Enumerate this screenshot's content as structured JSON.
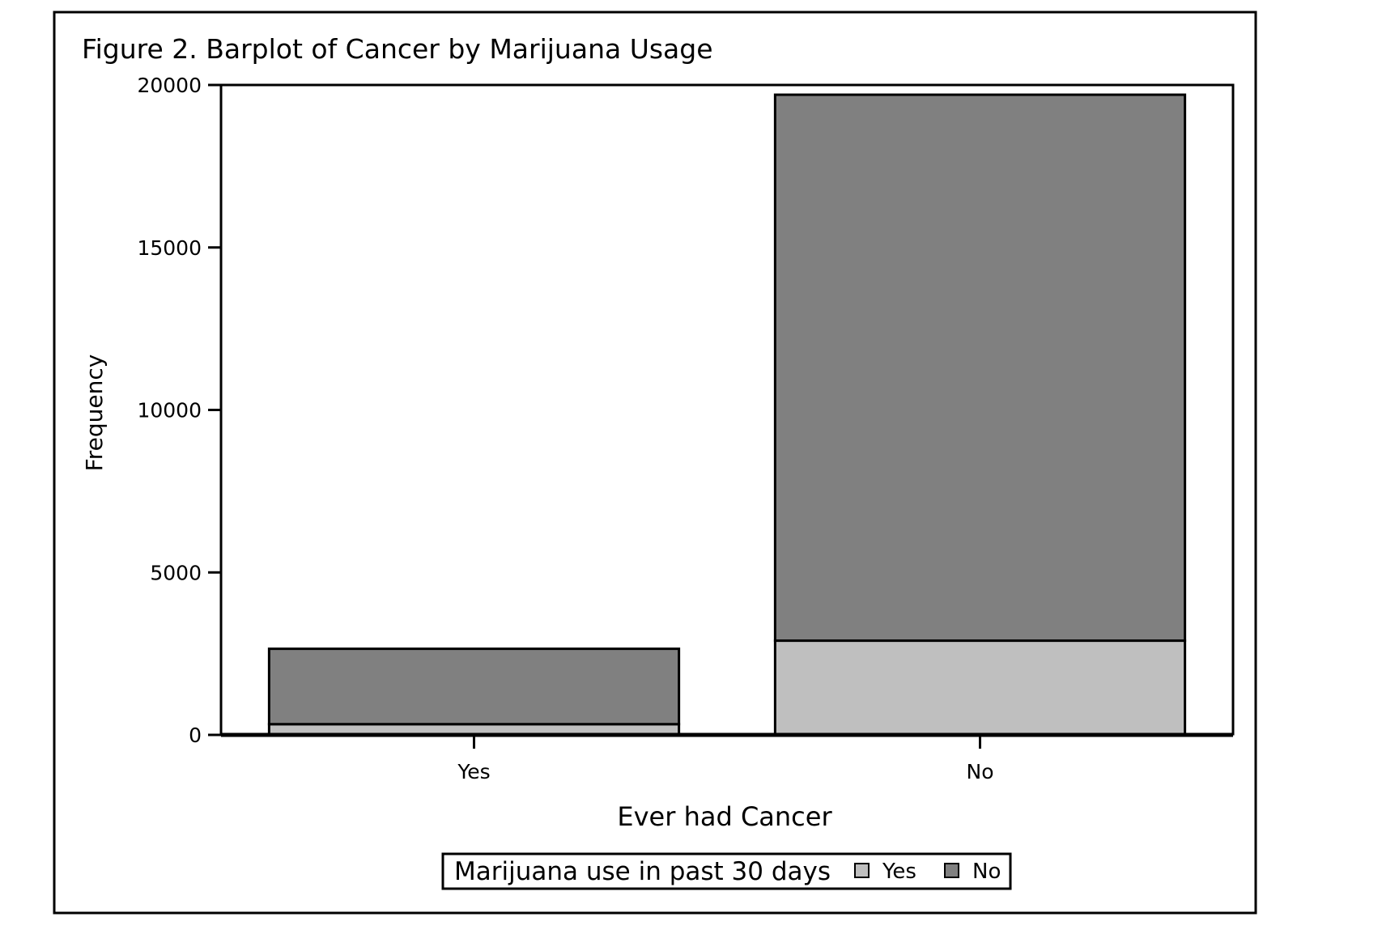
{
  "chart_data": {
    "type": "bar",
    "stacked": true,
    "title": "Figure 2. Barplot of Cancer by Marijuana Usage",
    "xlabel": "Ever had Cancer",
    "ylabel": "Frequency",
    "categories": [
      "Yes",
      "No"
    ],
    "series": [
      {
        "name": "Yes",
        "values": [
          330,
          2900
        ],
        "color": "#bfbfbf"
      },
      {
        "name": "No",
        "values": [
          2320,
          16800
        ],
        "color": "#808080"
      }
    ],
    "ylim": [
      0,
      20000
    ],
    "yticks": [
      "0",
      "5000",
      "10000",
      "15000",
      "20000"
    ],
    "ytick_values": [
      0,
      5000,
      10000,
      15000,
      20000
    ],
    "legend": {
      "title": "Marijuana use in past 30 days",
      "position": "bottom-center"
    },
    "grid": false
  }
}
